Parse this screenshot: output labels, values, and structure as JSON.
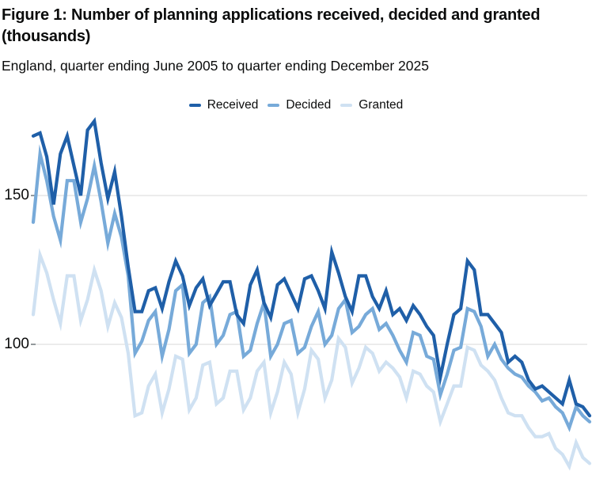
{
  "figure": {
    "title_line1": "Figure 1: Number of planning applications received, decided and granted",
    "title_line2": "(thousands)",
    "subtitle": "England, quarter ending June 2005 to quarter ending December 2025"
  },
  "colors": {
    "received": "#1f5fa8",
    "decided": "#77aad9",
    "granted": "#cfe1f2",
    "gridline": "#d9d9d9",
    "tick": "#6f777b",
    "text": "#0b0c0c"
  },
  "chart_data": {
    "type": "line",
    "title": "Number of planning applications received, decided and granted (thousands)",
    "subtitle": "England, quarter ending June 2005 to quarter ending December 2025",
    "x_start": "2005 Q2",
    "x_end": "2025 Q4",
    "x_points": 83,
    "x_axis_labels_shown": false,
    "xlabel": "",
    "ylabel": "",
    "y_ticks": [
      150,
      100
    ],
    "ylim": [
      55,
      180
    ],
    "grid": "horizontal-only",
    "legend_position": "top-center",
    "series": [
      {
        "name": "Received",
        "color": "#1f5fa8",
        "values": [
          170,
          171,
          163,
          147,
          164,
          170,
          160,
          150,
          172,
          175,
          161,
          149,
          158,
          143,
          126,
          111,
          111,
          118,
          119,
          112,
          121,
          128,
          123,
          113,
          119,
          122,
          113,
          117,
          121,
          121,
          110,
          107,
          120,
          125,
          114,
          109,
          120,
          122,
          117,
          112,
          122,
          123,
          118,
          112,
          131,
          124,
          116,
          111,
          123,
          123,
          116,
          112,
          118,
          110,
          112,
          108,
          113,
          110,
          106,
          103,
          89,
          100,
          110,
          112,
          128,
          125,
          110,
          110,
          107,
          104,
          94,
          96,
          94,
          88,
          85,
          86,
          84,
          82,
          80,
          88,
          80,
          79,
          76
        ]
      },
      {
        "name": "Decided",
        "color": "#77aad9",
        "values": [
          141,
          164,
          155,
          143,
          135,
          155,
          155,
          141,
          149,
          160,
          148,
          134,
          144,
          136,
          123,
          97,
          101,
          108,
          111,
          96,
          105,
          118,
          120,
          97,
          100,
          114,
          116,
          100,
          103,
          110,
          111,
          96,
          98,
          107,
          114,
          96,
          100,
          107,
          108,
          97,
          99,
          106,
          111,
          100,
          103,
          112,
          115,
          104,
          106,
          110,
          112,
          105,
          107,
          103,
          98,
          94,
          104,
          103,
          96,
          95,
          83,
          90,
          98,
          99,
          112,
          111,
          106,
          96,
          100,
          95,
          92,
          90,
          89,
          86,
          84,
          81,
          82,
          79,
          77,
          72,
          79,
          76,
          74
        ]
      },
      {
        "name": "Granted",
        "color": "#cfe1f2",
        "values": [
          110,
          130,
          124,
          115,
          107,
          123,
          123,
          108,
          115,
          125,
          118,
          106,
          114,
          109,
          97,
          76,
          77,
          86,
          90,
          77,
          85,
          96,
          95,
          78,
          82,
          93,
          94,
          80,
          82,
          91,
          91,
          78,
          82,
          91,
          94,
          77,
          84,
          94,
          90,
          77,
          85,
          98,
          95,
          82,
          88,
          102,
          99,
          87,
          92,
          99,
          97,
          91,
          94,
          92,
          89,
          82,
          91,
          90,
          86,
          84,
          74,
          80,
          86,
          86,
          99,
          98,
          93,
          91,
          88,
          82,
          77,
          76,
          76,
          72,
          69,
          69,
          70,
          65,
          63,
          59,
          67,
          62,
          60
        ]
      }
    ]
  }
}
